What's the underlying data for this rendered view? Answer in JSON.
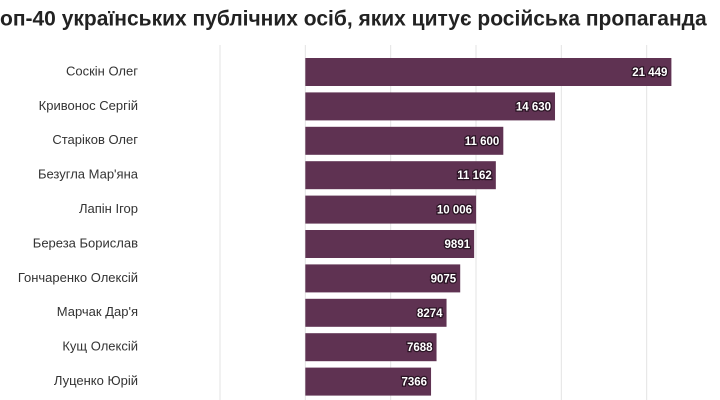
{
  "chart_data": {
    "type": "bar",
    "orientation": "horizontal",
    "title": "оп-40 українських публічних осіб, яких цитує російська пропаганда",
    "categories": [
      "Соскін Олег",
      "Кривонос Сергій",
      "Старіков Олег",
      "Безугла Мар'яна",
      "Лапін Ігор",
      "Береза Борислав",
      "Гончаренко Олексій",
      "Марчак Дар'я",
      "Кущ Олексій",
      "Луценко Юрій"
    ],
    "values": [
      21449,
      14630,
      11600,
      11162,
      10006,
      9891,
      9075,
      8274,
      7688,
      7366
    ],
    "value_labels": [
      "21 449",
      "14 630",
      "11 600",
      "11 162",
      "10 006",
      "9891",
      "9075",
      "8274",
      "7688",
      "7366"
    ],
    "color": "#5f3252",
    "xlim": [
      -5000,
      25000
    ],
    "xticks": [
      -5000,
      0,
      5000,
      10000,
      15000,
      20000
    ],
    "grid": true
  }
}
